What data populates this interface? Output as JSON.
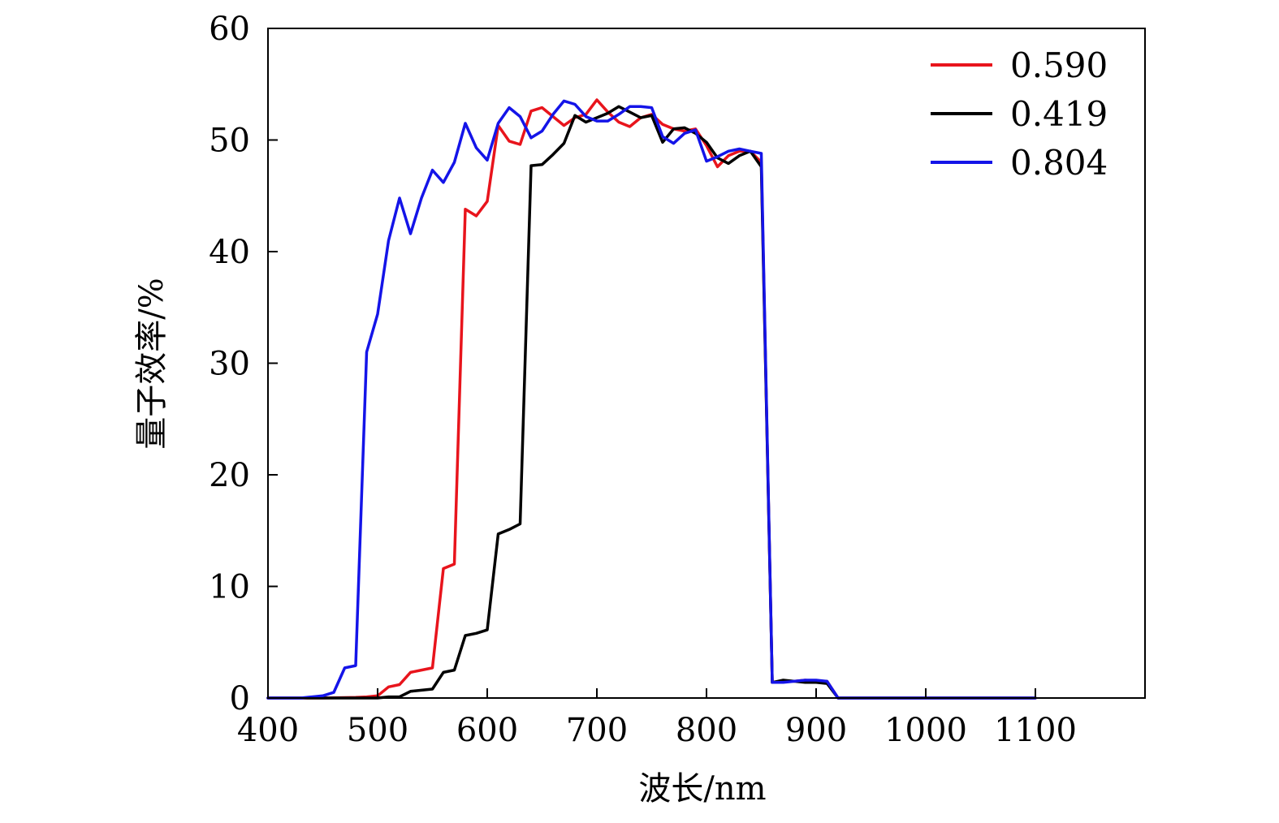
{
  "chart_data": {
    "type": "line",
    "title": "",
    "xlabel": "波长/nm",
    "ylabel": "量子效率/%",
    "xlim": [
      400,
      1200
    ],
    "ylim": [
      0,
      60
    ],
    "xticks": [
      400,
      500,
      600,
      700,
      800,
      900,
      1000,
      1100
    ],
    "yticks": [
      0,
      10,
      20,
      30,
      40,
      50,
      60
    ],
    "grid": false,
    "legend": "top-right",
    "series": [
      {
        "name": "0.590",
        "color": "#e8141c",
        "points": [
          [
            400,
            0
          ],
          [
            450,
            0
          ],
          [
            480,
            0.05
          ],
          [
            490,
            0.1
          ],
          [
            500,
            0.2
          ],
          [
            510,
            1.0
          ],
          [
            520,
            1.2
          ],
          [
            530,
            2.3
          ],
          [
            540,
            2.5
          ],
          [
            550,
            2.7
          ],
          [
            560,
            11.6
          ],
          [
            570,
            12.0
          ],
          [
            580,
            43.8
          ],
          [
            590,
            43.2
          ],
          [
            600,
            44.5
          ],
          [
            610,
            51.3
          ],
          [
            620,
            49.9
          ],
          [
            630,
            49.6
          ],
          [
            640,
            52.6
          ],
          [
            650,
            52.9
          ],
          [
            660,
            52.1
          ],
          [
            670,
            51.3
          ],
          [
            680,
            52.0
          ],
          [
            690,
            52.3
          ],
          [
            700,
            53.6
          ],
          [
            710,
            52.5
          ],
          [
            720,
            51.6
          ],
          [
            730,
            51.2
          ],
          [
            740,
            52.0
          ],
          [
            750,
            52.3
          ],
          [
            760,
            51.4
          ],
          [
            770,
            51.0
          ],
          [
            780,
            50.8
          ],
          [
            790,
            51.0
          ],
          [
            800,
            49.5
          ],
          [
            810,
            47.6
          ],
          [
            820,
            48.6
          ],
          [
            830,
            49.0
          ],
          [
            840,
            49.0
          ],
          [
            850,
            48.0
          ],
          [
            860,
            1.4
          ],
          [
            870,
            1.5
          ],
          [
            880,
            1.5
          ],
          [
            890,
            1.6
          ],
          [
            900,
            1.5
          ],
          [
            910,
            1.5
          ],
          [
            920,
            0
          ],
          [
            950,
            0
          ],
          [
            1000,
            0
          ],
          [
            1050,
            0
          ],
          [
            1100,
            0
          ]
        ]
      },
      {
        "name": "0.419",
        "color": "#000000",
        "points": [
          [
            400,
            0
          ],
          [
            450,
            0
          ],
          [
            500,
            0
          ],
          [
            510,
            0.1
          ],
          [
            520,
            0.1
          ],
          [
            530,
            0.6
          ],
          [
            540,
            0.7
          ],
          [
            550,
            0.8
          ],
          [
            560,
            2.3
          ],
          [
            570,
            2.5
          ],
          [
            580,
            5.6
          ],
          [
            590,
            5.8
          ],
          [
            600,
            6.1
          ],
          [
            610,
            14.7
          ],
          [
            620,
            15.1
          ],
          [
            630,
            15.6
          ],
          [
            640,
            47.7
          ],
          [
            650,
            47.8
          ],
          [
            660,
            48.7
          ],
          [
            670,
            49.7
          ],
          [
            680,
            52.2
          ],
          [
            690,
            51.6
          ],
          [
            700,
            52.0
          ],
          [
            710,
            52.4
          ],
          [
            720,
            53.0
          ],
          [
            730,
            52.5
          ],
          [
            740,
            52.0
          ],
          [
            750,
            52.2
          ],
          [
            760,
            49.8
          ],
          [
            770,
            51.0
          ],
          [
            780,
            51.1
          ],
          [
            790,
            50.6
          ],
          [
            800,
            49.8
          ],
          [
            810,
            48.4
          ],
          [
            820,
            47.9
          ],
          [
            830,
            48.6
          ],
          [
            840,
            49.0
          ],
          [
            850,
            47.6
          ],
          [
            860,
            1.4
          ],
          [
            870,
            1.6
          ],
          [
            880,
            1.5
          ],
          [
            890,
            1.4
          ],
          [
            900,
            1.4
          ],
          [
            910,
            1.3
          ],
          [
            920,
            0
          ],
          [
            950,
            0
          ],
          [
            1000,
            0
          ],
          [
            1050,
            0
          ],
          [
            1100,
            0
          ]
        ]
      },
      {
        "name": "0.804",
        "color": "#1414e8",
        "points": [
          [
            400,
            0
          ],
          [
            430,
            0
          ],
          [
            440,
            0.1
          ],
          [
            450,
            0.2
          ],
          [
            460,
            0.5
          ],
          [
            470,
            2.7
          ],
          [
            480,
            2.9
          ],
          [
            490,
            31.0
          ],
          [
            500,
            34.4
          ],
          [
            510,
            41.0
          ],
          [
            520,
            44.8
          ],
          [
            530,
            41.6
          ],
          [
            540,
            44.8
          ],
          [
            550,
            47.3
          ],
          [
            560,
            46.2
          ],
          [
            570,
            48.0
          ],
          [
            580,
            51.5
          ],
          [
            590,
            49.3
          ],
          [
            600,
            48.2
          ],
          [
            610,
            51.5
          ],
          [
            620,
            52.9
          ],
          [
            630,
            52.1
          ],
          [
            640,
            50.2
          ],
          [
            650,
            50.8
          ],
          [
            660,
            52.3
          ],
          [
            670,
            53.5
          ],
          [
            680,
            53.2
          ],
          [
            690,
            52.1
          ],
          [
            700,
            51.7
          ],
          [
            710,
            51.7
          ],
          [
            720,
            52.3
          ],
          [
            730,
            53.0
          ],
          [
            740,
            53.0
          ],
          [
            750,
            52.9
          ],
          [
            760,
            50.3
          ],
          [
            770,
            49.7
          ],
          [
            780,
            50.6
          ],
          [
            790,
            50.9
          ],
          [
            800,
            48.1
          ],
          [
            810,
            48.5
          ],
          [
            820,
            49.0
          ],
          [
            830,
            49.2
          ],
          [
            840,
            49.0
          ],
          [
            850,
            48.8
          ],
          [
            860,
            1.4
          ],
          [
            870,
            1.4
          ],
          [
            880,
            1.5
          ],
          [
            890,
            1.6
          ],
          [
            900,
            1.6
          ],
          [
            910,
            1.5
          ],
          [
            920,
            0
          ],
          [
            950,
            0
          ],
          [
            1000,
            0
          ],
          [
            1050,
            0
          ],
          [
            1100,
            0
          ]
        ]
      }
    ]
  }
}
